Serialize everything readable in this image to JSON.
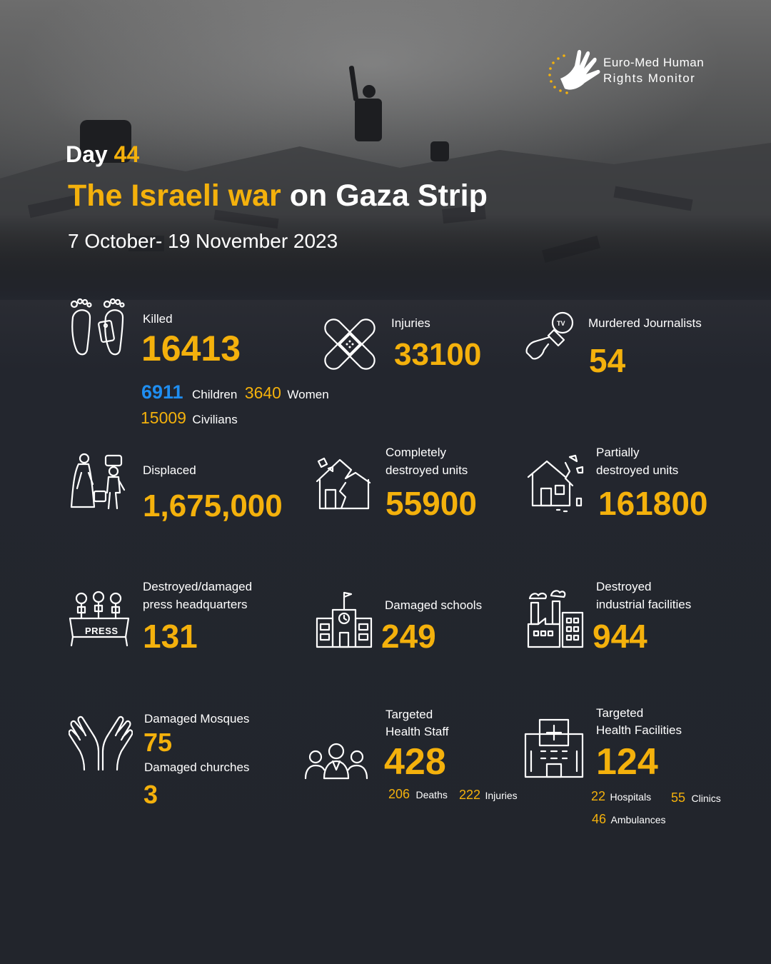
{
  "logo": {
    "line1": "Euro-Med Human",
    "line2": "Rights Monitor"
  },
  "header": {
    "day_label": "Day",
    "day_number": "44",
    "title_part1": "The Israeli war",
    "title_part2": "on Gaza Strip",
    "dates": "7 October- 19 November 2023"
  },
  "stats": {
    "killed": {
      "label": "Killed",
      "value": "16413",
      "children_value": "6911",
      "children_label": "Children",
      "women_value": "3640",
      "women_label": "Women",
      "civilians_value": "15009",
      "civilians_label": "Civilians"
    },
    "injuries": {
      "label": "Injuries",
      "value": "33100"
    },
    "journalists": {
      "label": "Murdered Journalists",
      "value": "54"
    },
    "displaced": {
      "label": "Displaced",
      "value": "1,675,000"
    },
    "completely_destroyed": {
      "label_line1": "Completely",
      "label_line2": "destroyed  units",
      "value": "55900"
    },
    "partially_destroyed": {
      "label_line1": "Partially",
      "label_line2": "destroyed units",
      "value": "161800"
    },
    "press_hq": {
      "label_line1": "Destroyed/damaged",
      "label_line2": "press headquarters",
      "value": "131",
      "icon_text": "PRESS"
    },
    "schools": {
      "label": "Damaged schools",
      "value": "249"
    },
    "industrial": {
      "label_line1": "Destroyed",
      "label_line2": "industrial facilities",
      "value": "944"
    },
    "mosques": {
      "label": "Damaged Mosques",
      "value": "75",
      "churches_label": "Damaged churches",
      "churches_value": "3"
    },
    "health_staff": {
      "label_line1": "Targeted",
      "label_line2": "Health Staff",
      "value": "428",
      "deaths_value": "206",
      "deaths_label": "Deaths",
      "injuries_value": "222",
      "injuries_label": "Injuries"
    },
    "health_facilities": {
      "label_line1": "Targeted",
      "label_line2": "Health Facilities",
      "value": "124",
      "hospitals_value": "22",
      "hospitals_label": "Hospitals",
      "clinics_value": "55",
      "clinics_label": "Clinics",
      "ambulances_value": "46",
      "ambulances_label": "Ambulances"
    }
  },
  "colors": {
    "accent": "#f4b10c",
    "children": "#1f8ef1",
    "background": "#23262e"
  },
  "icons": [
    "dove-hand-logo-icon",
    "feet-tag-icon",
    "bandage-icon",
    "journalist-microphone-icon",
    "displaced-family-icon",
    "destroyed-house-icon",
    "cracked-house-icon",
    "press-podium-icon",
    "school-building-icon",
    "factory-icon",
    "praying-hands-icon",
    "health-staff-group-icon",
    "hospital-icon"
  ]
}
